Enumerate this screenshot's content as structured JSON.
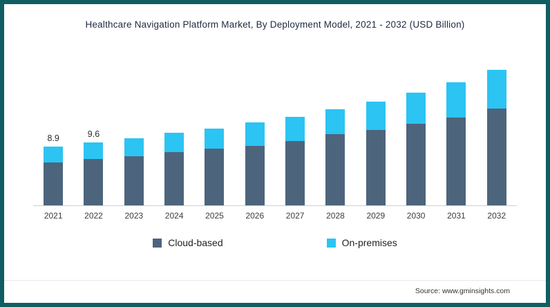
{
  "title": "Healthcare Navigation Platform Market, By Deployment Model, 2021 - 2032 (USD Billion)",
  "source": "Source: www.gminsights.com",
  "colors": {
    "frame_border": "#0f5e62",
    "cloud_based": "#4d647d",
    "on_premises": "#2bc4f3"
  },
  "legend": [
    {
      "label": "Cloud-based",
      "color": "#4d647d"
    },
    {
      "label": "On-premises",
      "color": "#2bc4f3"
    }
  ],
  "chart_data": {
    "type": "bar",
    "stacked": true,
    "title": "Healthcare Navigation Platform Market, By Deployment Model, 2021 - 2032 (USD Billion)",
    "xlabel": "",
    "ylabel": "",
    "units": "USD Billion",
    "grid": false,
    "legend_position": "bottom",
    "categories": [
      "2021",
      "2022",
      "2023",
      "2024",
      "2025",
      "2026",
      "2027",
      "2028",
      "2029",
      "2030",
      "2031",
      "2032"
    ],
    "series": [
      {
        "name": "Cloud-based",
        "color": "#4d647d",
        "values": [
          6.5,
          7.1,
          7.5,
          8.1,
          8.6,
          9.1,
          9.8,
          10.8,
          11.5,
          12.4,
          13.4,
          14.7
        ]
      },
      {
        "name": "On-premises",
        "color": "#2bc4f3",
        "values": [
          2.4,
          2.5,
          2.7,
          3.0,
          3.1,
          3.5,
          3.7,
          3.8,
          4.3,
          4.8,
          5.3,
          5.9
        ]
      }
    ],
    "totals": [
      8.9,
      9.6,
      10.2,
      11.1,
      11.7,
      12.6,
      13.5,
      14.6,
      15.8,
      17.2,
      18.7,
      20.6
    ],
    "data_labels": [
      "8.9",
      "9.6",
      "",
      "",
      "",
      "",
      "",
      "",
      "",
      "",
      "",
      ""
    ]
  }
}
